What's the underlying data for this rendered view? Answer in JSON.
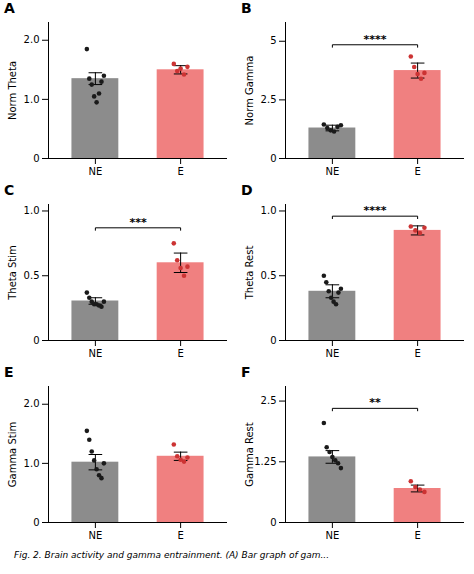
{
  "chart_data": [
    {
      "type": "bar",
      "title": "A",
      "ylabel": "Norm Theta",
      "categories": [
        "NE",
        "E"
      ],
      "values": [
        1.35,
        1.5
      ],
      "errors": [
        0.1,
        0.07
      ],
      "colors": [
        "#8c8c8c",
        "#f08080"
      ],
      "dots": [
        [
          1.85,
          1.35,
          1.25,
          1.05,
          0.95,
          1.1,
          1.3,
          1.4
        ],
        [
          1.6,
          1.48,
          1.52,
          1.42,
          1.55
        ]
      ],
      "dot_colors": [
        "#1a1a1a",
        "#cc3333"
      ],
      "ylim": [
        0,
        2.3
      ],
      "yticks": [
        0,
        {
          "value": 1.0,
          "label": "1.0"
        },
        {
          "value": 2.0,
          "label": "2.0"
        }
      ]
    },
    {
      "type": "bar",
      "title": "B",
      "ylabel": "Norm Gamma",
      "categories": [
        "NE",
        "E"
      ],
      "values": [
        1.3,
        3.75
      ],
      "errors": [
        0.12,
        0.32
      ],
      "colors": [
        "#8c8c8c",
        "#f08080"
      ],
      "dots": [
        [
          1.45,
          1.3,
          1.2,
          1.15,
          1.35,
          1.42
        ],
        [
          4.35,
          3.9,
          3.6,
          3.4,
          3.65
        ]
      ],
      "dot_colors": [
        "#1a1a1a",
        "#cc3333"
      ],
      "annotations": [
        {
          "text": "****",
          "y": 4.85
        }
      ],
      "ylim": [
        0,
        5.8
      ],
      "yticks": [
        0,
        2.5,
        5
      ]
    },
    {
      "type": "bar",
      "title": "C",
      "ylabel": "Theta Stim",
      "categories": [
        "NE",
        "E"
      ],
      "values": [
        0.305,
        0.6
      ],
      "errors": [
        0.025,
        0.075
      ],
      "colors": [
        "#8c8c8c",
        "#f08080"
      ],
      "dots": [
        [
          0.37,
          0.33,
          0.3,
          0.28,
          0.28,
          0.27,
          0.26,
          0.3
        ],
        [
          0.75,
          0.62,
          0.56,
          0.5,
          0.57
        ]
      ],
      "dot_colors": [
        "#1a1a1a",
        "#cc3333"
      ],
      "annotations": [
        {
          "text": "***",
          "y": 0.87
        }
      ],
      "ylim": [
        0,
        1.05
      ],
      "yticks": [
        0,
        0.5,
        {
          "value": 1.0,
          "label": "1.0"
        }
      ]
    },
    {
      "type": "bar",
      "title": "D",
      "ylabel": "Theta Rest",
      "categories": [
        "NE",
        "E"
      ],
      "values": [
        0.38,
        0.85
      ],
      "errors": [
        0.05,
        0.035
      ],
      "colors": [
        "#8c8c8c",
        "#f08080"
      ],
      "dots": [
        [
          0.5,
          0.45,
          0.38,
          0.33,
          0.3,
          0.28,
          0.37,
          0.4
        ],
        [
          0.88,
          0.85,
          0.83,
          0.87
        ]
      ],
      "dot_colors": [
        "#1a1a1a",
        "#cc3333"
      ],
      "annotations": [
        {
          "text": "****",
          "y": 0.96
        }
      ],
      "ylim": [
        0,
        1.05
      ],
      "yticks": [
        0,
        0.5,
        {
          "value": 1.0,
          "label": "1.0"
        }
      ]
    },
    {
      "type": "bar",
      "title": "E",
      "ylabel": "Gamma Stim",
      "categories": [
        "NE",
        "E"
      ],
      "values": [
        1.02,
        1.12
      ],
      "errors": [
        0.13,
        0.07
      ],
      "colors": [
        "#8c8c8c",
        "#f08080"
      ],
      "dots": [
        [
          1.55,
          1.4,
          1.2,
          1.05,
          0.9,
          0.8,
          0.75,
          1.0
        ],
        [
          1.32,
          1.12,
          1.06,
          1.03,
          1.1
        ]
      ],
      "dot_colors": [
        "#1a1a1a",
        "#cc3333"
      ],
      "ylim": [
        0,
        2.3
      ],
      "yticks": [
        0,
        {
          "value": 1.0,
          "label": "1.0"
        },
        {
          "value": 2.0,
          "label": "2.0"
        }
      ]
    },
    {
      "type": "bar",
      "title": "F",
      "ylabel": "Gamma Rest",
      "categories": [
        "NE",
        "E"
      ],
      "values": [
        1.35,
        0.7
      ],
      "errors": [
        0.13,
        0.07
      ],
      "colors": [
        "#8c8c8c",
        "#f08080"
      ],
      "dots": [
        [
          2.05,
          1.55,
          1.45,
          1.35,
          1.28,
          1.22,
          1.12
        ],
        [
          0.85,
          0.73,
          0.68,
          0.63
        ]
      ],
      "dot_colors": [
        "#1a1a1a",
        "#cc3333"
      ],
      "annotations": [
        {
          "text": "**",
          "y": 2.35
        }
      ],
      "ylim": [
        0,
        2.8
      ],
      "yticks": [
        0,
        1.25,
        2.5
      ]
    }
  ],
  "caption": "Fig. 2. Brain activity and gamma entrainment. (A) Bar graph of gam..."
}
